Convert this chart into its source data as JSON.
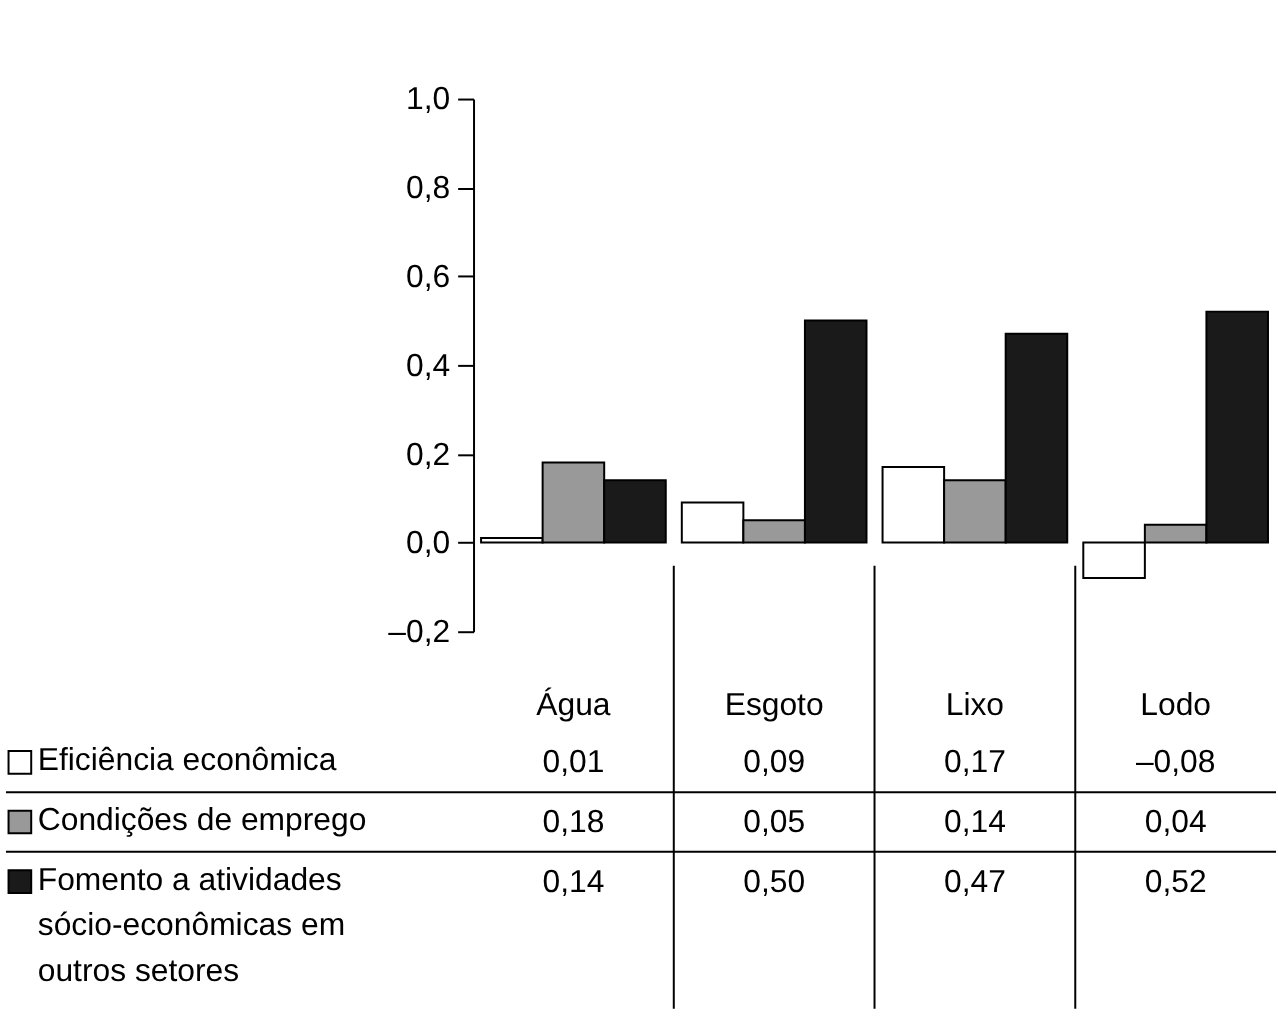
{
  "chart_data": {
    "type": "bar",
    "categories": [
      "Água",
      "Esgoto",
      "Lixo",
      "Lodo"
    ],
    "series": [
      {
        "name": "Eficiência econômica",
        "color": "#ffffff",
        "values": [
          0.01,
          0.09,
          0.17,
          -0.08
        ],
        "value_labels": [
          "0,01",
          "0,09",
          "0,17",
          "–0,08"
        ]
      },
      {
        "name": "Condições de emprego",
        "color": "#999999",
        "values": [
          0.18,
          0.05,
          0.14,
          0.04
        ],
        "value_labels": [
          "0,18",
          "0,05",
          "0,14",
          "0,04"
        ]
      },
      {
        "name": "Fomento a atividades sócio-econômicas em outros setores",
        "color": "#1a1a1a",
        "values": [
          0.14,
          0.5,
          0.47,
          0.52
        ],
        "value_labels": [
          "0,14",
          "0,50",
          "0,47",
          "0,52"
        ]
      }
    ],
    "ylim": [
      -0.2,
      1
    ],
    "yticks": [
      {
        "value": -0.2,
        "label": "–0,2"
      },
      {
        "value": 0,
        "label": "0,0"
      },
      {
        "value": 0.2,
        "label": "0,2"
      },
      {
        "value": 0.4,
        "label": "0,4"
      },
      {
        "value": 0.6,
        "label": "0,6"
      },
      {
        "value": 0.8,
        "label": "0,8"
      },
      {
        "value": 1,
        "label": "1,0"
      }
    ],
    "grid": false,
    "legend": "bottom left"
  }
}
